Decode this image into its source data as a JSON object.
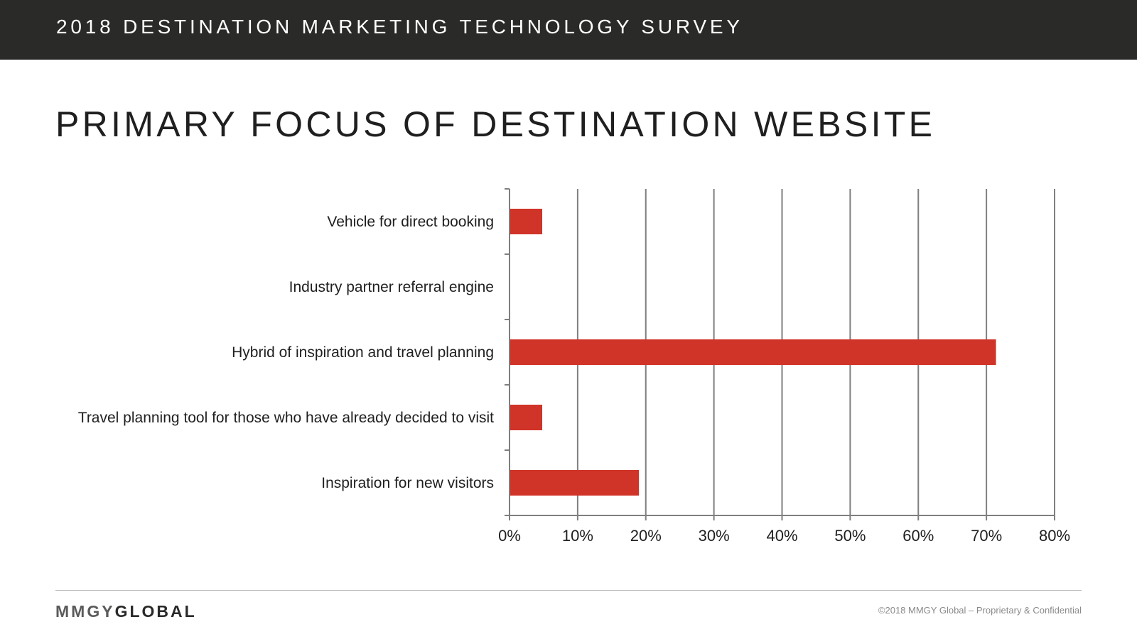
{
  "header": {
    "title": "2018 DESTINATION MARKETING TECHNOLOGY SURVEY"
  },
  "page_title": "PRIMARY FOCUS OF DESTINATION WEBSITE",
  "footer": {
    "logo_part1": "MMGY",
    "logo_part2": "GLOBAL",
    "copyright": "©2018 MMGY Global – Proprietary & Confidential"
  },
  "colors": {
    "bar": "#d03327",
    "header_bg": "#2a2a28",
    "gridline": "#7f7f7f"
  },
  "chart_data": {
    "type": "bar",
    "orientation": "horizontal",
    "title": "",
    "xlabel": "",
    "ylabel": "",
    "categories": [
      "Vehicle for direct booking",
      "Industry partner referral engine",
      "Hybrid of inspiration and travel planning",
      "Travel planning tool for those who have already decided to visit",
      "Inspiration for new visitors"
    ],
    "values": [
      4.8,
      0,
      71.4,
      4.8,
      19.0
    ],
    "xlim": [
      0,
      80
    ],
    "xticks": [
      0,
      10,
      20,
      30,
      40,
      50,
      60,
      70,
      80
    ],
    "xtick_labels": [
      "0%",
      "10%",
      "20%",
      "30%",
      "40%",
      "50%",
      "60%",
      "70%",
      "80%"
    ],
    "grid": "vertical",
    "legend": "none"
  }
}
